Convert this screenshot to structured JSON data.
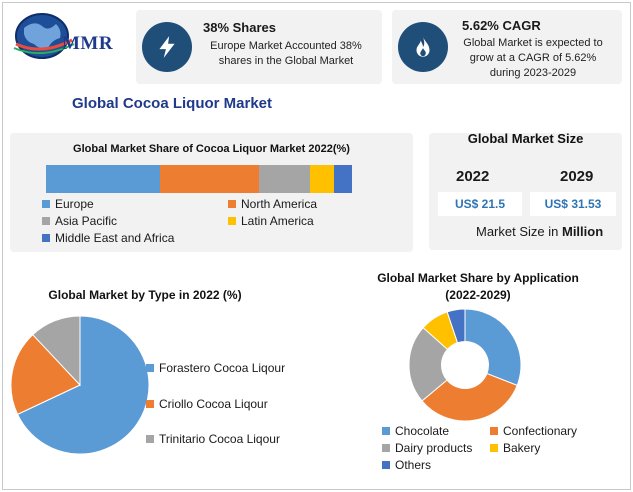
{
  "brand": {
    "name": "MMR"
  },
  "info_cards": [
    {
      "icon": "lightning-icon",
      "title": "38% Shares",
      "text_lines": [
        "Europe Market Accounted 38%",
        "shares in the Global Market"
      ]
    },
    {
      "icon": "flame-icon",
      "title": "5.62% CAGR",
      "text_lines": [
        "Global Market is expected to",
        "grow at a CAGR of 5.62%",
        "during 2023-2029"
      ]
    }
  ],
  "main_title": "Global Cocoa Liquor Market",
  "colors": {
    "blue": "#5b9bd5",
    "orange": "#ed7d31",
    "gray": "#a5a5a5",
    "yellow": "#ffc000",
    "darkblue": "#4472c4",
    "navy": "#1f4e79"
  },
  "market_size": {
    "title": "Global Market Size",
    "years": [
      "2022",
      "2029"
    ],
    "values": [
      "US$ 21.5",
      "US$ 31.53"
    ],
    "unit_prefix": "Market Size in ",
    "unit_bold": "Million"
  },
  "chart_data": [
    {
      "type": "bar",
      "stacked": true,
      "orientation": "horizontal",
      "title": "Global Market Share of Cocoa Liquor Market 2022(%)",
      "series": [
        {
          "name": "Europe",
          "value": 38,
          "color": "#5b9bd5"
        },
        {
          "name": "North America",
          "value": 33,
          "color": "#ed7d31"
        },
        {
          "name": "Asia Pacific",
          "value": 17,
          "color": "#a5a5a5"
        },
        {
          "name": "Latin America",
          "value": 8,
          "color": "#ffc000"
        },
        {
          "name": "Middle East and Africa",
          "value": 6,
          "color": "#4472c4"
        }
      ]
    },
    {
      "type": "pie",
      "title": "Global Market by Type in 2022 (%)",
      "slices": [
        {
          "name": "Forastero Cocoa Liqour",
          "value": 68,
          "color": "#5b9bd5"
        },
        {
          "name": "Criollo Cocoa Liqour",
          "value": 20,
          "color": "#ed7d31"
        },
        {
          "name": "Trinitario Cocoa Liqour",
          "value": 12,
          "color": "#a5a5a5"
        }
      ]
    },
    {
      "type": "pie",
      "donut": true,
      "title_lines": [
        "Global Market Share by Application",
        "(2022-2029)"
      ],
      "slices": [
        {
          "name": "Chocolate",
          "value": 30,
          "color": "#5b9bd5"
        },
        {
          "name": "Confectionary",
          "value": 32,
          "color": "#ed7d31"
        },
        {
          "name": "Dairy products",
          "value": 22,
          "color": "#a5a5a5"
        },
        {
          "name": "Bakery",
          "value": 8,
          "color": "#ffc000"
        },
        {
          "name": "Others",
          "value": 5,
          "color": "#4472c4"
        }
      ]
    }
  ]
}
